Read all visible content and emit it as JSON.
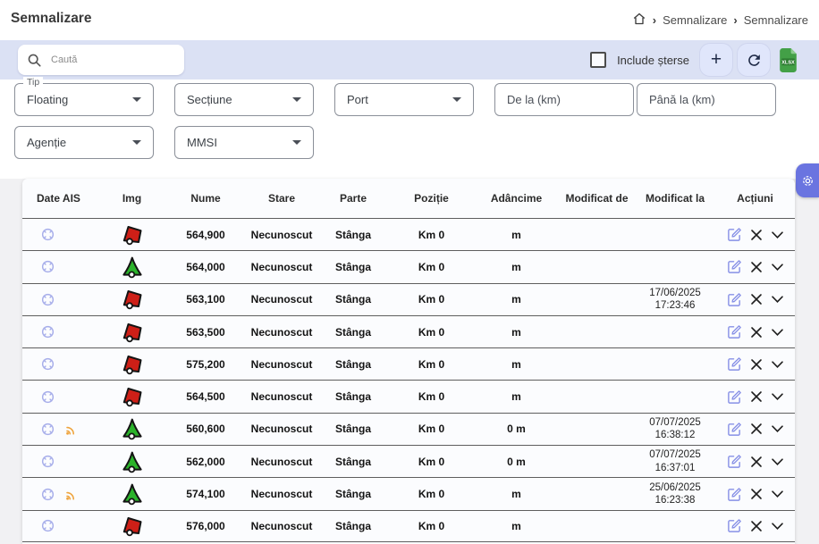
{
  "header": {
    "title": "Semnalizare"
  },
  "breadcrumb": {
    "items": [
      "Semnalizare",
      "Semnalizare"
    ],
    "separator": "›"
  },
  "toolbar": {
    "search_placeholder": "Caută",
    "include_deleted_label": "Include șterse",
    "add_label": "+",
    "export_label": "XLSX"
  },
  "filters": {
    "tip": {
      "label": "Tip",
      "value": "Floating"
    },
    "sectiune": {
      "placeholder": "Secțiune"
    },
    "port": {
      "placeholder": "Port"
    },
    "de_la": {
      "placeholder": "De la (km)"
    },
    "pana_la": {
      "placeholder": "Până la (km)"
    },
    "agentie": {
      "placeholder": "Agenție"
    },
    "mmsi": {
      "placeholder": "MMSI"
    }
  },
  "table": {
    "columns": [
      "Date AIS",
      "Img",
      "Nume",
      "Stare",
      "Parte",
      "Poziție",
      "Adâncime",
      "Modificat de",
      "Modificat la",
      "Acțiuni"
    ],
    "rows": [
      {
        "ais": true,
        "rss": false,
        "buoy": "red",
        "nume": "564,900",
        "stare": "Necunoscut",
        "parte": "Stânga",
        "pozitie": "Km 0",
        "adancime": "m",
        "modificat_de": "",
        "modificat_la_date": "",
        "modificat_la_time": ""
      },
      {
        "ais": true,
        "rss": false,
        "buoy": "green",
        "nume": "564,000",
        "stare": "Necunoscut",
        "parte": "Stânga",
        "pozitie": "Km 0",
        "adancime": "m",
        "modificat_de": "",
        "modificat_la_date": "",
        "modificat_la_time": ""
      },
      {
        "ais": true,
        "rss": false,
        "buoy": "red",
        "nume": "563,100",
        "stare": "Necunoscut",
        "parte": "Stânga",
        "pozitie": "Km 0",
        "adancime": "m",
        "modificat_de": "",
        "modificat_la_date": "17/06/2025",
        "modificat_la_time": "17:23:46"
      },
      {
        "ais": true,
        "rss": false,
        "buoy": "red",
        "nume": "563,500",
        "stare": "Necunoscut",
        "parte": "Stânga",
        "pozitie": "Km 0",
        "adancime": "m",
        "modificat_de": "",
        "modificat_la_date": "",
        "modificat_la_time": ""
      },
      {
        "ais": true,
        "rss": false,
        "buoy": "red",
        "nume": "575,200",
        "stare": "Necunoscut",
        "parte": "Stânga",
        "pozitie": "Km 0",
        "adancime": "m",
        "modificat_de": "",
        "modificat_la_date": "",
        "modificat_la_time": ""
      },
      {
        "ais": true,
        "rss": false,
        "buoy": "red",
        "nume": "564,500",
        "stare": "Necunoscut",
        "parte": "Stânga",
        "pozitie": "Km 0",
        "adancime": "m",
        "modificat_de": "",
        "modificat_la_date": "",
        "modificat_la_time": ""
      },
      {
        "ais": true,
        "rss": true,
        "buoy": "green",
        "nume": "560,600",
        "stare": "Necunoscut",
        "parte": "Stânga",
        "pozitie": "Km 0",
        "adancime": "0 m",
        "modificat_de": "",
        "modificat_la_date": "07/07/2025",
        "modificat_la_time": "16:38:12"
      },
      {
        "ais": true,
        "rss": false,
        "buoy": "green",
        "nume": "562,000",
        "stare": "Necunoscut",
        "parte": "Stânga",
        "pozitie": "Km 0",
        "adancime": "0 m",
        "modificat_de": "",
        "modificat_la_date": "07/07/2025",
        "modificat_la_time": "16:37:01"
      },
      {
        "ais": true,
        "rss": true,
        "buoy": "green",
        "nume": "574,100",
        "stare": "Necunoscut",
        "parte": "Stânga",
        "pozitie": "Km 0",
        "adancime": "m",
        "modificat_de": "",
        "modificat_la_date": "25/06/2025",
        "modificat_la_time": "16:23:38"
      },
      {
        "ais": true,
        "rss": false,
        "buoy": "red",
        "nume": "576,000",
        "stare": "Necunoscut",
        "parte": "Stânga",
        "pozitie": "Km 0",
        "adancime": "m",
        "modificat_de": "",
        "modificat_la_date": "",
        "modificat_la_time": ""
      }
    ]
  },
  "colors": {
    "band": "#dbe1f4",
    "accent_indigo": "#6a74e0",
    "edit_icon": "#8790e6",
    "target_icon": "#a7aeea",
    "rss_icon": "#efa43d",
    "buoy_red": "#ce1f17",
    "buoy_green": "#2bb32a",
    "xlsx_green": "#43a047",
    "row_separator": "#5e5e5e"
  }
}
